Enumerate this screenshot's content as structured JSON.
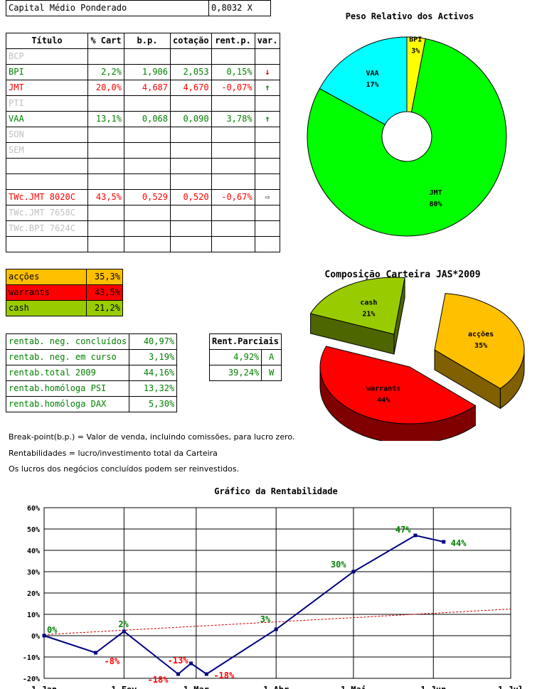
{
  "capital": {
    "label": "Capital Médio Ponderado",
    "value": "0,8032",
    "unit": "X"
  },
  "assets": {
    "headers": [
      "Título",
      "% Cart",
      "b.p.",
      "cotação",
      "rent.p.",
      "var."
    ],
    "rows": [
      {
        "name": "BCP",
        "cart": "",
        "bp": "",
        "cot": "",
        "rent": "",
        "var": "",
        "style": "grey"
      },
      {
        "name": "BPI",
        "cart": "2,2%",
        "bp": "1,906",
        "cot": "2,053",
        "rent": "0,15%",
        "var": "down",
        "style": "green"
      },
      {
        "name": "JMT",
        "cart": "20,0%",
        "bp": "4,687",
        "cot": "4,670",
        "rent": "-0,07%",
        "var": "up",
        "style": "red"
      },
      {
        "name": "PTI",
        "cart": "",
        "bp": "",
        "cot": "",
        "rent": "",
        "var": "",
        "style": "grey"
      },
      {
        "name": "VAA",
        "cart": "13,1%",
        "bp": "0,068",
        "cot": "0,090",
        "rent": "3,78%",
        "var": "up",
        "style": "green"
      },
      {
        "name": "SON",
        "cart": "",
        "bp": "",
        "cot": "",
        "rent": "",
        "var": "",
        "style": "grey"
      },
      {
        "name": "SEM",
        "cart": "",
        "bp": "",
        "cot": "",
        "rent": "",
        "var": "",
        "style": "grey"
      },
      {
        "name": "",
        "cart": "",
        "bp": "",
        "cot": "",
        "rent": "",
        "var": "",
        "style": "grey"
      },
      {
        "name": "",
        "cart": "",
        "bp": "",
        "cot": "",
        "rent": "",
        "var": "",
        "style": "grey"
      },
      {
        "name": "TWc.JMT 8020C",
        "cart": "43,5%",
        "bp": "0,529",
        "cot": "0,520",
        "rent": "-0,67%",
        "var": "right",
        "style": "red"
      },
      {
        "name": "TWc.JMT 7658C",
        "cart": "",
        "bp": "",
        "cot": "",
        "rent": "",
        "var": "",
        "style": "grey"
      },
      {
        "name": "TWc.BPI 7624C",
        "cart": "",
        "bp": "",
        "cot": "",
        "rent": "",
        "var": "",
        "style": "grey"
      },
      {
        "name": "",
        "cart": "",
        "bp": "",
        "cot": "",
        "rent": "",
        "var": "",
        "style": "grey"
      }
    ]
  },
  "allocation": [
    {
      "label": "acções",
      "value": "35,3%",
      "color": "#ffc000"
    },
    {
      "label": "warrants",
      "value": "43,5%",
      "color": "#ff0000"
    },
    {
      "label": "cash",
      "value": "21,2%",
      "color": "#99cc00"
    }
  ],
  "returns": [
    {
      "label": "rentab. neg. concluídos",
      "value": "40,97%"
    },
    {
      "label": "rentab. neg. em curso",
      "value": "3,19%"
    },
    {
      "label": "rentab.total 2009",
      "value": "44,16%"
    },
    {
      "label": "rentab.homóloga PSI",
      "value": "13,32%"
    },
    {
      "label": "rentab.homóloga DAX",
      "value": "5,30%"
    }
  ],
  "partial": {
    "header": "Rent.Parciais",
    "rows": [
      {
        "value": "4,92%",
        "code": "A"
      },
      {
        "value": "39,24%",
        "code": "W"
      }
    ]
  },
  "notes": [
    "Break-point(b.p.) = Valor de venda, incluindo comissões, para lucro zero.",
    "Rentabilidades = lucro/investimento total da Carteira",
    "Os lucros dos negócios concluídos podem ser reinvestidos."
  ],
  "chart_data": [
    {
      "type": "pie",
      "title": "Peso Relativo dos Activos",
      "slices": [
        {
          "label": "BPI",
          "value": 3,
          "color": "#ffff00"
        },
        {
          "label": "JMT",
          "value": 80,
          "color": "#00ff00"
        },
        {
          "label": "VAA",
          "value": 17,
          "color": "#00ffff"
        }
      ]
    },
    {
      "type": "pie",
      "title": "Composição Carteira JAS*2009",
      "slices": [
        {
          "label": "acções",
          "value": 35,
          "color": "#ffc000"
        },
        {
          "label": "warrants",
          "value": 44,
          "color": "#ff0000"
        },
        {
          "label": "cash",
          "value": 21,
          "color": "#99cc00"
        }
      ]
    },
    {
      "type": "line",
      "title": "Gráfico da Rentabilidade",
      "x_labels": [
        "1-Jan",
        "1-Fev",
        "1-Mar",
        "1-Abr",
        "1-Mai",
        "1-Jun",
        "1-Jul"
      ],
      "y_ticks": [
        "-20%",
        "-10%",
        "0%",
        "10%",
        "20%",
        "30%",
        "40%",
        "50%",
        "60%"
      ],
      "ylim": [
        -20,
        60
      ],
      "series": [
        {
          "color": "#000080",
          "points": [
            {
              "x": "2009-01-01",
              "y": 0,
              "label": "0%"
            },
            {
              "x": "2009-01-21",
              "y": -8,
              "label": "-8%"
            },
            {
              "x": "2009-02-01",
              "y": 2,
              "label": "2%"
            },
            {
              "x": "2009-02-22",
              "y": -18,
              "label": "-18%"
            },
            {
              "x": "2009-02-27",
              "y": -13,
              "label": "-13%"
            },
            {
              "x": "2009-03-05",
              "y": -18,
              "label": "-18%"
            },
            {
              "x": "2009-04-01",
              "y": 3,
              "label": "3%"
            },
            {
              "x": "2009-05-01",
              "y": 30,
              "label": "30%"
            },
            {
              "x": "2009-05-25",
              "y": 47,
              "label": "47%"
            },
            {
              "x": "2009-06-05",
              "y": 44,
              "label": "44%"
            }
          ]
        }
      ],
      "trendline": {
        "color": "#cc0000",
        "style": "dotted",
        "from": {
          "x": "2009-01-01",
          "y": 0.5
        },
        "to": {
          "x": "2009-07-01",
          "y": 12.5
        }
      }
    }
  ]
}
